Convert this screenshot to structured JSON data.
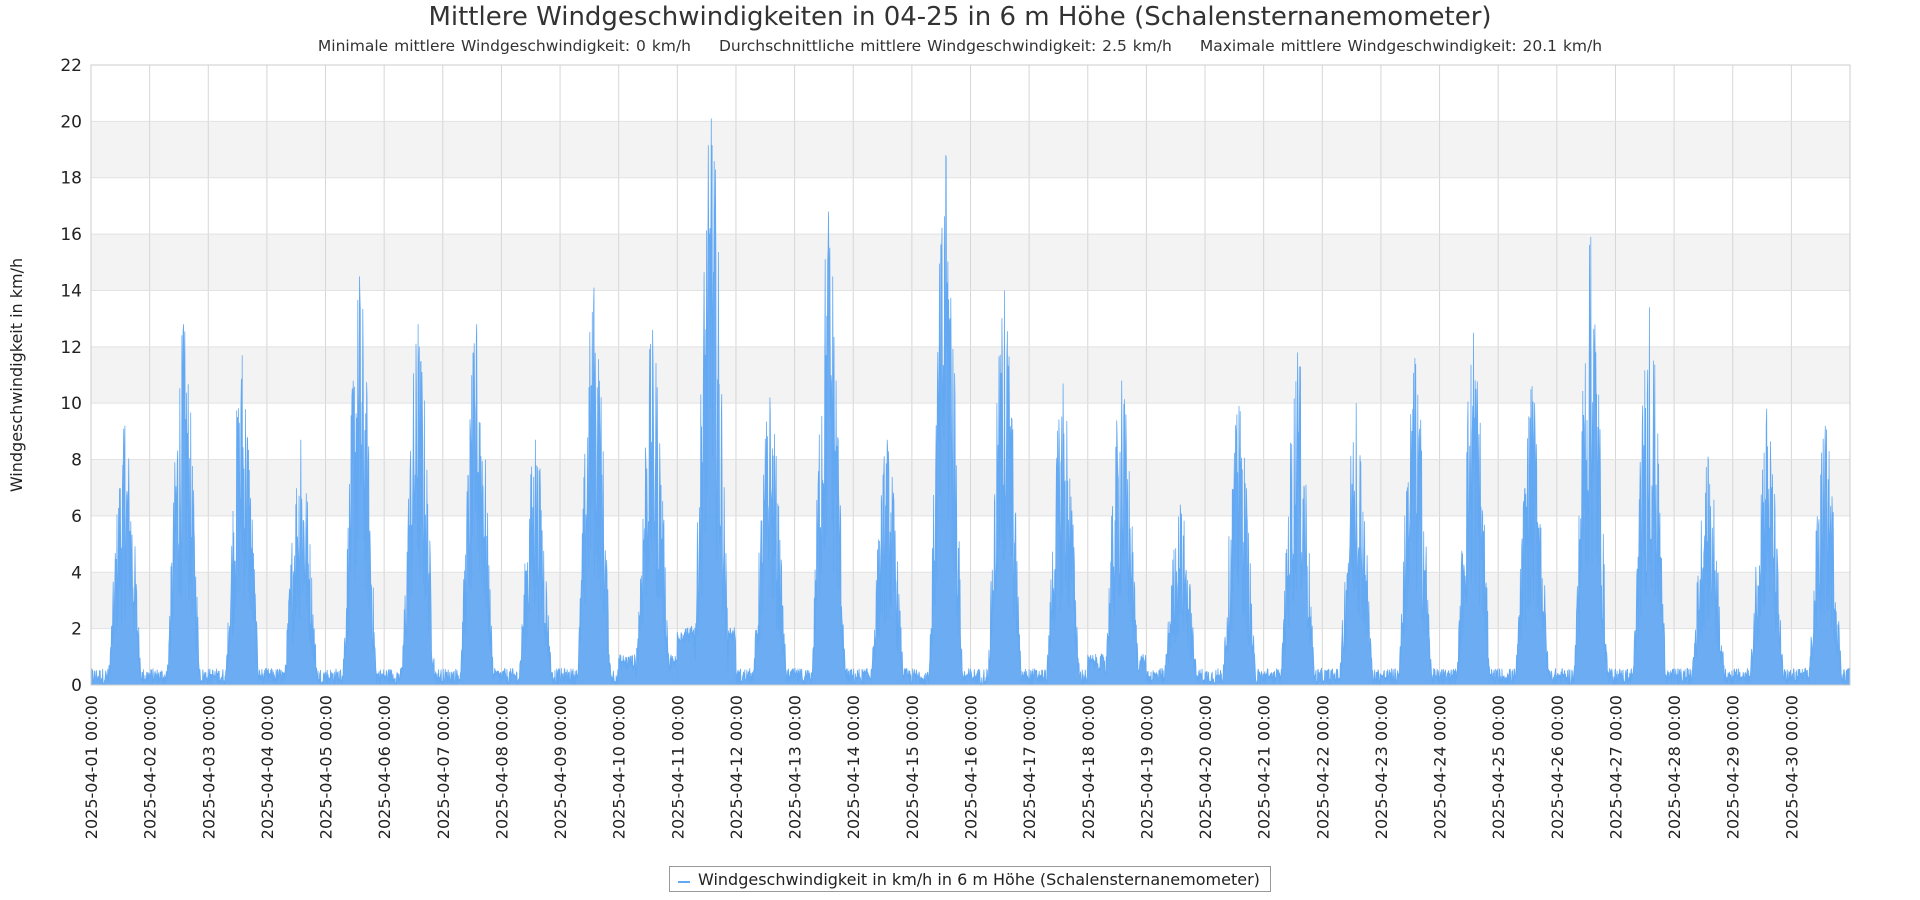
{
  "chart_data": {
    "type": "area",
    "title": "Mittlere Windgeschwindigkeiten in 04-25 in 6 m Höhe (Schalensternanemometer)",
    "subtitle": {
      "min": "Minimale mittlere Windgeschwindigkeit: 0 km/h",
      "avg": "Durchschnittliche mittlere Windgeschwindigkeit: 2.5 km/h",
      "max": "Maximale mittlere Windgeschwindigkeit: 20.1 km/h"
    },
    "ylabel": "Windgeschwindigkeit in km/h",
    "xlabel": "",
    "ylim": [
      0,
      22
    ],
    "y_ticks": [
      "0",
      "2",
      "4",
      "6",
      "8",
      "10",
      "12",
      "14",
      "16",
      "18",
      "20",
      "22"
    ],
    "x_ticks": [
      "2025-04-01 00:00",
      "2025-04-02 00:00",
      "2025-04-03 00:00",
      "2025-04-04 00:00",
      "2025-04-05 00:00",
      "2025-04-06 00:00",
      "2025-04-07 00:00",
      "2025-04-08 00:00",
      "2025-04-09 00:00",
      "2025-04-10 00:00",
      "2025-04-11 00:00",
      "2025-04-12 00:00",
      "2025-04-13 00:00",
      "2025-04-14 00:00",
      "2025-04-15 00:00",
      "2025-04-16 00:00",
      "2025-04-17 00:00",
      "2025-04-18 00:00",
      "2025-04-19 00:00",
      "2025-04-20 00:00",
      "2025-04-21 00:00",
      "2025-04-22 00:00",
      "2025-04-23 00:00",
      "2025-04-24 00:00",
      "2025-04-25 00:00",
      "2025-04-26 00:00",
      "2025-04-27 00:00",
      "2025-04-28 00:00",
      "2025-04-29 00:00",
      "2025-04-30 00:00"
    ],
    "x_range": [
      "2025-04-01 00:00",
      "2025-05-01 00:00"
    ],
    "grid": true,
    "legend_position": "bottom-center",
    "series": [
      {
        "name": "Windgeschwindigkeit in km/h in 6 m Höhe (Schalensternanemometer)",
        "color": "#63a8f2",
        "daily_peak_profile": [
          {
            "day": "2025-04-01",
            "peak": 9.2,
            "min": 0.0
          },
          {
            "day": "2025-04-02",
            "peak": 12.8,
            "min": 0.0
          },
          {
            "day": "2025-04-03",
            "peak": 11.7,
            "min": 0.0
          },
          {
            "day": "2025-04-04",
            "peak": 8.7,
            "min": 0.0
          },
          {
            "day": "2025-04-05",
            "peak": 14.5,
            "min": 0.0
          },
          {
            "day": "2025-04-06",
            "peak": 12.8,
            "min": 0.0
          },
          {
            "day": "2025-04-07",
            "peak": 12.8,
            "min": 0.0
          },
          {
            "day": "2025-04-08",
            "peak": 8.7,
            "min": 0.0
          },
          {
            "day": "2025-04-09",
            "peak": 14.1,
            "min": 0.0
          },
          {
            "day": "2025-04-10",
            "peak": 12.6,
            "min": 0.5
          },
          {
            "day": "2025-04-11",
            "peak": 20.1,
            "min": 1.5
          },
          {
            "day": "2025-04-12",
            "peak": 10.2,
            "min": 0.0
          },
          {
            "day": "2025-04-13",
            "peak": 16.8,
            "min": 0.0
          },
          {
            "day": "2025-04-14",
            "peak": 8.7,
            "min": 0.0
          },
          {
            "day": "2025-04-15",
            "peak": 18.8,
            "min": 0.0
          },
          {
            "day": "2025-04-16",
            "peak": 14.0,
            "min": 0.0
          },
          {
            "day": "2025-04-17",
            "peak": 10.7,
            "min": 0.0
          },
          {
            "day": "2025-04-18",
            "peak": 10.8,
            "min": 0.5
          },
          {
            "day": "2025-04-19",
            "peak": 6.4,
            "min": 0.0
          },
          {
            "day": "2025-04-20",
            "peak": 9.9,
            "min": 0.0
          },
          {
            "day": "2025-04-21",
            "peak": 11.8,
            "min": 0.0
          },
          {
            "day": "2025-04-22",
            "peak": 10.0,
            "min": 0.0
          },
          {
            "day": "2025-04-23",
            "peak": 11.6,
            "min": 0.0
          },
          {
            "day": "2025-04-24",
            "peak": 12.5,
            "min": 0.0
          },
          {
            "day": "2025-04-25",
            "peak": 10.6,
            "min": 0.0
          },
          {
            "day": "2025-04-26",
            "peak": 15.9,
            "min": 0.0
          },
          {
            "day": "2025-04-27",
            "peak": 13.4,
            "min": 0.0
          },
          {
            "day": "2025-04-28",
            "peak": 8.1,
            "min": 0.0
          },
          {
            "day": "2025-04-29",
            "peak": 9.8,
            "min": 0.0
          },
          {
            "day": "2025-04-30",
            "peak": 9.2,
            "min": 0.0
          }
        ]
      }
    ]
  }
}
